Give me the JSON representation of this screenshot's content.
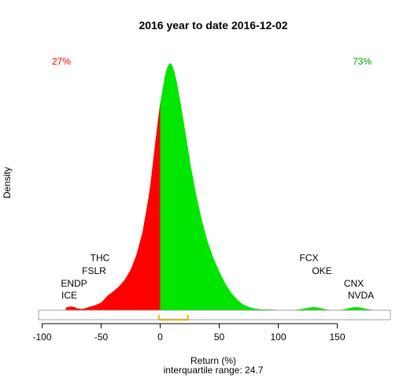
{
  "chart_data": {
    "type": "area",
    "title": "2016  year to date 2016-12-02",
    "xlabel": "Return (%)",
    "ylabel": "Density",
    "subtitle": "interquartile range: 24.7",
    "xlim": [
      -103,
      195
    ],
    "ylim": [
      0,
      0.0305
    ],
    "x_ticks": [
      -100,
      -50,
      0,
      50,
      100,
      150
    ],
    "grid": false,
    "split_at": 0,
    "percent_negative": "27%",
    "percent_positive": "73%",
    "iqr_band": [
      -1,
      23.5
    ],
    "colors": {
      "negative": "#ff0000",
      "positive": "#00e600",
      "iqr": "#ffc000",
      "axis": "#000000"
    },
    "density_x": [
      -80,
      -78,
      -75,
      -72,
      -70,
      -66,
      -60,
      -55,
      -50,
      -46,
      -44,
      -40,
      -35,
      -30,
      -25,
      -20,
      -15,
      -10,
      -8,
      -5,
      -3,
      0,
      2,
      4,
      6,
      8,
      10,
      12,
      14,
      17,
      20,
      23,
      26,
      30,
      35,
      40,
      45,
      50,
      55,
      60,
      65,
      70,
      75,
      80,
      85,
      90,
      95,
      100,
      105,
      110,
      115,
      120,
      125,
      130,
      135,
      140,
      145,
      150,
      155,
      160,
      165,
      170,
      175,
      180
    ],
    "density_y": [
      0.0003,
      0.0004,
      0.00045,
      0.00035,
      0.0002,
      0.00015,
      0.0004,
      0.0006,
      0.0009,
      0.0015,
      0.0018,
      0.0022,
      0.0028,
      0.0036,
      0.0048,
      0.0066,
      0.0092,
      0.0132,
      0.0152,
      0.0188,
      0.0212,
      0.0245,
      0.026,
      0.0277,
      0.0287,
      0.0292,
      0.029,
      0.0282,
      0.027,
      0.0247,
      0.0222,
      0.0196,
      0.017,
      0.014,
      0.0108,
      0.0082,
      0.0062,
      0.0046,
      0.0032,
      0.0021,
      0.0013,
      0.0007,
      0.0004,
      0.0002,
      0.00012,
      0.0001,
      8e-05,
      5e-05,
      3e-05,
      3e-05,
      6e-05,
      0.00015,
      0.0003,
      0.00038,
      0.0003,
      0.00012,
      4e-05,
      3e-05,
      8e-05,
      0.00025,
      0.00038,
      0.00033,
      0.00015,
      5e-05
    ],
    "annotations": [
      {
        "text": "THC",
        "x": -51,
        "y": 0.0058
      },
      {
        "text": "FSLR",
        "x": -56,
        "y": 0.0043
      },
      {
        "text": "ENDP",
        "x": -73,
        "y": 0.0028
      },
      {
        "text": "ICE",
        "x": -77,
        "y": 0.0014
      },
      {
        "text": "FCX",
        "x": 126,
        "y": 0.0058
      },
      {
        "text": "OKE",
        "x": 137,
        "y": 0.0043
      },
      {
        "text": "CNX",
        "x": 164,
        "y": 0.0028
      },
      {
        "text": "NVDA",
        "x": 170,
        "y": 0.0014
      }
    ]
  }
}
